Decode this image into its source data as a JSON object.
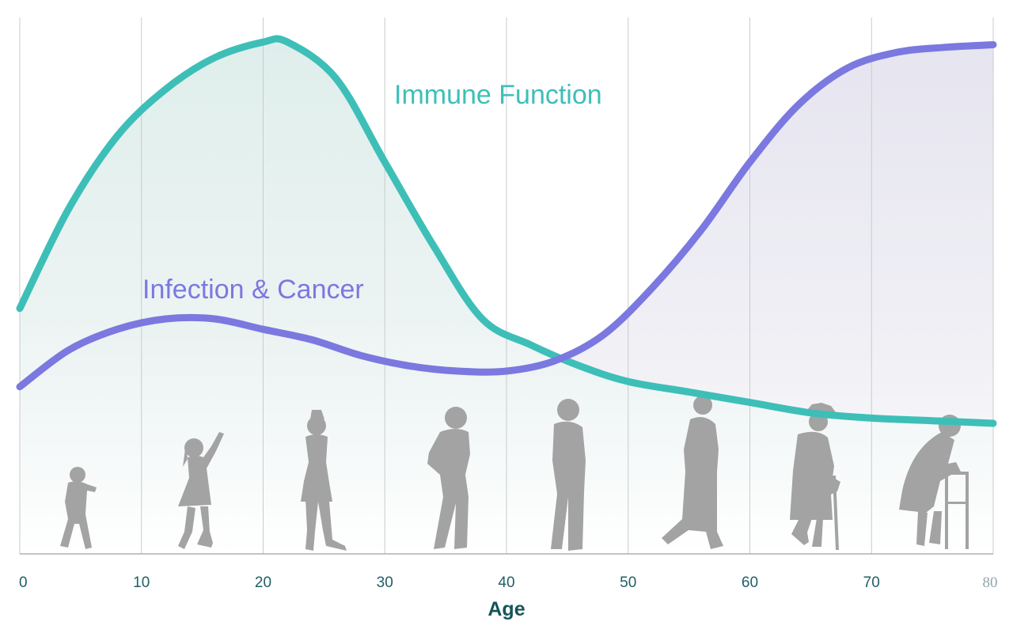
{
  "chart_data": {
    "type": "line",
    "xlabel": "Age",
    "xlim": [
      0,
      80
    ],
    "x_ticks": [
      "0",
      "10",
      "20",
      "30",
      "40",
      "50",
      "60",
      "70",
      "80"
    ],
    "ylim": [
      0,
      100
    ],
    "grid": "vertical",
    "series": [
      {
        "name": "Immune Function",
        "color": "#3dbfb8",
        "x": [
          0,
          4,
          8,
          12,
          16,
          20,
          22,
          26,
          30,
          34,
          38,
          42,
          46,
          50,
          55,
          60,
          65,
          70,
          75,
          80
        ],
        "y": [
          47,
          66,
          80,
          89,
          95,
          98,
          98,
          91,
          75,
          59,
          45,
          40,
          36,
          33,
          31,
          29,
          27,
          26,
          25.5,
          25
        ]
      },
      {
        "name": "Infection & Cancer",
        "color": "#7b78e0",
        "x": [
          0,
          4,
          8,
          12,
          16,
          20,
          24,
          28,
          32,
          36,
          40,
          44,
          48,
          52,
          56,
          60,
          64,
          68,
          72,
          76,
          80
        ],
        "y": [
          32,
          39,
          43,
          45,
          45,
          43,
          41,
          38,
          36,
          35,
          35,
          37,
          42,
          51,
          62,
          75,
          86,
          93,
          96,
          97,
          97.5
        ]
      }
    ],
    "label_colors": {
      "immune": "#3dbfb8",
      "infection": "#7b78e0"
    },
    "figures": [
      "toddler-silhouette",
      "child-silhouette",
      "teen-silhouette",
      "adult-silhouette",
      "middle-aged-silhouette",
      "older-woman-silhouette",
      "elderly-cane-silhouette",
      "elderly-walker-silhouette"
    ]
  }
}
